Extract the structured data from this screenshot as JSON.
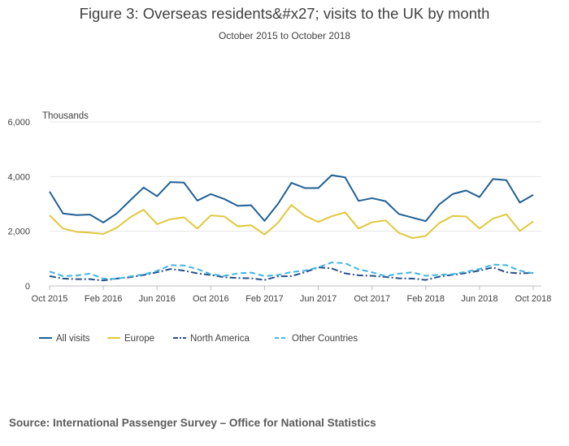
{
  "chart_data": {
    "type": "line",
    "title": "Figure 3: Overseas residents&#x27; visits to the UK by month",
    "subtitle": "October 2015 to October 2018",
    "ylabel": "Thousands",
    "ylim": [
      0,
      6000
    ],
    "yticks": [
      0,
      2000,
      4000,
      6000
    ],
    "ytick_labels": [
      "0",
      "2,000",
      "4,000",
      "6,000"
    ],
    "xtick_indices": [
      0,
      4,
      8,
      12,
      16,
      20,
      24,
      28,
      32,
      36
    ],
    "xtick_labels": [
      "Oct 2015",
      "Feb 2016",
      "Jun 2016",
      "Oct 2016",
      "Feb 2017",
      "Jun 2017",
      "Oct 2017",
      "Feb 2018",
      "Jun 2018",
      "Oct 2018"
    ],
    "legend_position": "bottom",
    "series": [
      {
        "name": "All visits",
        "color": "#206095",
        "dash": "solid",
        "values": [
          3450,
          2650,
          2590,
          2610,
          2320,
          2650,
          3130,
          3600,
          3280,
          3800,
          3780,
          3120,
          3360,
          3180,
          2930,
          2950,
          2380,
          3000,
          3770,
          3580,
          3580,
          4050,
          3970,
          3110,
          3210,
          3100,
          2630,
          2500,
          2370,
          2980,
          3360,
          3490,
          3250,
          3910,
          3870,
          3050,
          3330
        ]
      },
      {
        "name": "Europe",
        "color": "#e1c83c",
        "dash": "solid",
        "values": [
          2580,
          2100,
          1980,
          1950,
          1900,
          2130,
          2510,
          2790,
          2260,
          2440,
          2510,
          2100,
          2580,
          2540,
          2180,
          2220,
          1880,
          2310,
          2960,
          2570,
          2340,
          2550,
          2690,
          2100,
          2330,
          2400,
          1940,
          1750,
          1830,
          2300,
          2560,
          2540,
          2100,
          2460,
          2620,
          2010,
          2360
        ]
      },
      {
        "name": "North America",
        "color": "#27508a",
        "dash": "dashdot",
        "values": [
          360,
          270,
          250,
          250,
          200,
          270,
          320,
          400,
          500,
          620,
          560,
          460,
          400,
          320,
          290,
          280,
          220,
          350,
          360,
          500,
          680,
          640,
          460,
          390,
          370,
          330,
          280,
          270,
          220,
          340,
          410,
          470,
          560,
          680,
          500,
          460,
          480
        ]
      },
      {
        "name": "Other Countries",
        "color": "#41b5e0",
        "dash": "dashed",
        "values": [
          530,
          360,
          380,
          450,
          270,
          260,
          350,
          420,
          550,
          760,
          750,
          620,
          430,
          370,
          460,
          490,
          360,
          400,
          510,
          560,
          680,
          860,
          830,
          610,
          500,
          360,
          450,
          500,
          370,
          410,
          430,
          520,
          620,
          780,
          760,
          560,
          460
        ]
      }
    ]
  },
  "source_text": "Source: International Passenger Survey – Office for National Statistics"
}
